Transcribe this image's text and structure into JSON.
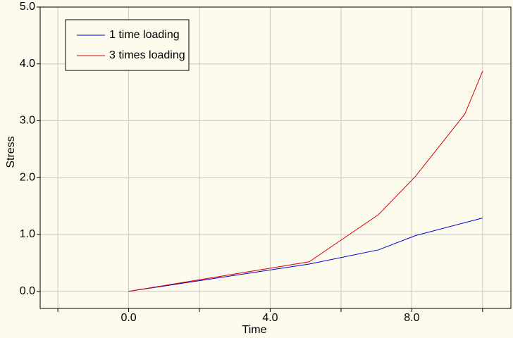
{
  "chart_data": {
    "type": "line",
    "xlabel": "Time",
    "ylabel": "Stress",
    "xlim": [
      -2.5,
      10.8
    ],
    "ylim": [
      -0.3,
      5.0
    ],
    "xticks": [
      {
        "value": 0,
        "label": "0.0"
      },
      {
        "value": 4,
        "label": "4.0"
      },
      {
        "value": 8,
        "label": "8.0"
      }
    ],
    "x_minor_ticks": [
      -2,
      2,
      6,
      10
    ],
    "yticks": [
      {
        "value": 0,
        "label": "0.0"
      },
      {
        "value": 1,
        "label": "1.0"
      },
      {
        "value": 2,
        "label": "2.0"
      },
      {
        "value": 3,
        "label": "3.0"
      },
      {
        "value": 4,
        "label": "4.0"
      },
      {
        "value": 5,
        "label": "5.0"
      }
    ],
    "grid": true,
    "legend": "upper left",
    "series": [
      {
        "name": "1 time loading",
        "color": "#0000cc",
        "x": [
          0,
          5.1,
          7.06,
          8.1,
          10
        ],
        "values": [
          0,
          0.48,
          0.73,
          0.98,
          1.29
        ]
      },
      {
        "name": "3 times loading",
        "color": "#dd0000",
        "x": [
          0,
          5.1,
          7.06,
          8.1,
          9.5,
          10
        ],
        "values": [
          0,
          0.52,
          1.35,
          2.02,
          3.12,
          3.87
        ]
      }
    ]
  }
}
